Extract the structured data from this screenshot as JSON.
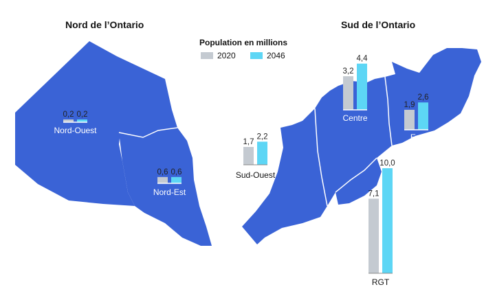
{
  "titles": {
    "north": "Nord de l’Ontario",
    "south": "Sud de l’Ontario"
  },
  "legend": {
    "title": "Population en millions",
    "items": [
      {
        "label": "2020",
        "color": "#c4cad1"
      },
      {
        "label": "2046",
        "color": "#5dd6f5"
      }
    ]
  },
  "colors": {
    "map_fill": "#3a63d6",
    "boundary": "#ffffff",
    "label_on_map": "#ffffff",
    "label_off_map": "#111111"
  },
  "chart_data": {
    "type": "bar",
    "series": [
      {
        "name": "2020"
      },
      {
        "name": "2046"
      }
    ],
    "regions": [
      {
        "name": "Nord-Ouest",
        "values": [
          0.2,
          0.2
        ],
        "labels": [
          "0,2",
          "0,2"
        ]
      },
      {
        "name": "Nord-Est",
        "values": [
          0.6,
          0.6
        ],
        "labels": [
          "0,6",
          "0,6"
        ]
      },
      {
        "name": "Sud-Ouest",
        "values": [
          1.7,
          2.2
        ],
        "labels": [
          "1,7",
          "2,2"
        ]
      },
      {
        "name": "Centre",
        "values": [
          3.2,
          4.4
        ],
        "labels": [
          "3,2",
          "4,4"
        ]
      },
      {
        "name": "Est",
        "values": [
          1.9,
          2.6
        ],
        "labels": [
          "1,9",
          "2,6"
        ]
      },
      {
        "name": "RGT",
        "values": [
          7.1,
          10.0
        ],
        "labels": [
          "7,1",
          "10,0"
        ]
      }
    ]
  }
}
